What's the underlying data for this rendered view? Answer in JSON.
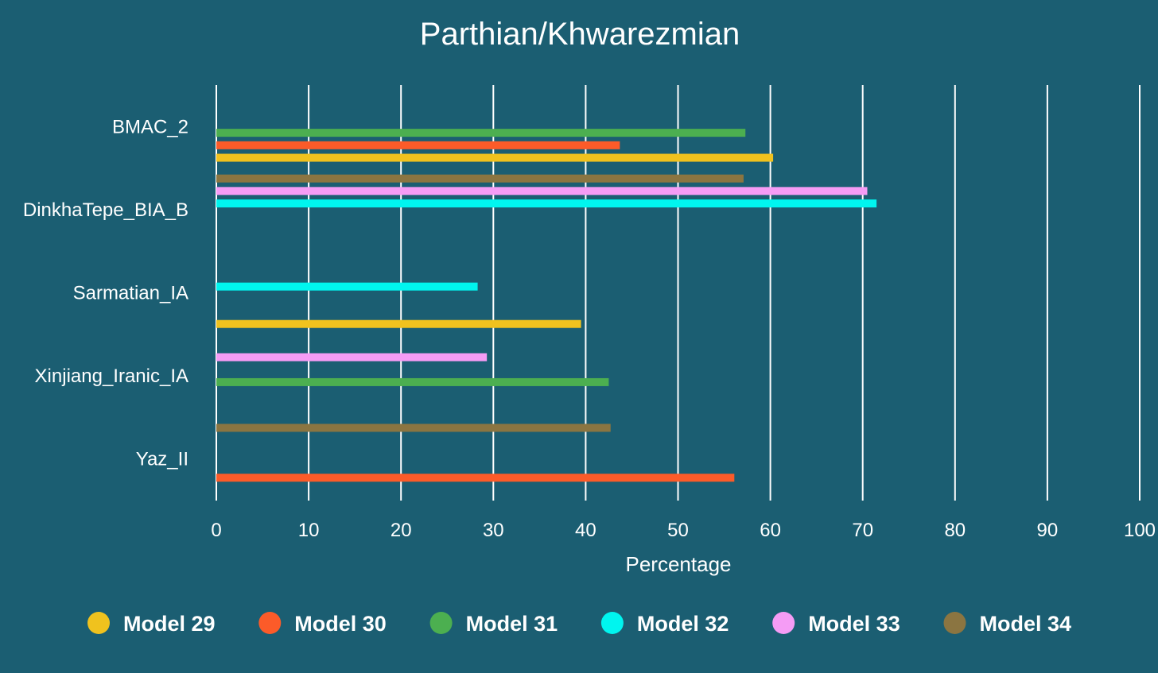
{
  "chart_data": {
    "type": "bar",
    "orientation": "horizontal",
    "title": "Parthian/Khwarezmian",
    "xlabel": "Percentage",
    "ylabel": "",
    "xlim": [
      0,
      100
    ],
    "xticks": [
      0,
      10,
      20,
      30,
      40,
      50,
      60,
      70,
      80,
      90,
      100
    ],
    "grid": true,
    "legend_position": "bottom",
    "categories": [
      "BMAC_2",
      "DinkhaTepe_BIA_B",
      "Sarmatian_IA",
      "Xinjiang_Iranic_IA",
      "Yaz_II"
    ],
    "series": [
      {
        "name": "Model 29",
        "color": "#f0c21e",
        "values": [
          60.3,
          null,
          39.5,
          null,
          null
        ]
      },
      {
        "name": "Model 30",
        "color": "#fc5b29",
        "values": [
          43.7,
          null,
          null,
          null,
          56.1
        ]
      },
      {
        "name": "Model 31",
        "color": "#4caf50",
        "values": [
          57.3,
          null,
          null,
          42.5,
          null
        ]
      },
      {
        "name": "Model 32",
        "color": "#00f5ef",
        "values": [
          null,
          71.5,
          28.3,
          null,
          null
        ]
      },
      {
        "name": "Model 33",
        "color": "#f59cf5",
        "values": [
          null,
          70.5,
          null,
          29.3,
          null
        ]
      },
      {
        "name": "Model 34",
        "color": "#8b7541",
        "values": [
          null,
          57.1,
          null,
          null,
          42.7
        ]
      }
    ]
  }
}
